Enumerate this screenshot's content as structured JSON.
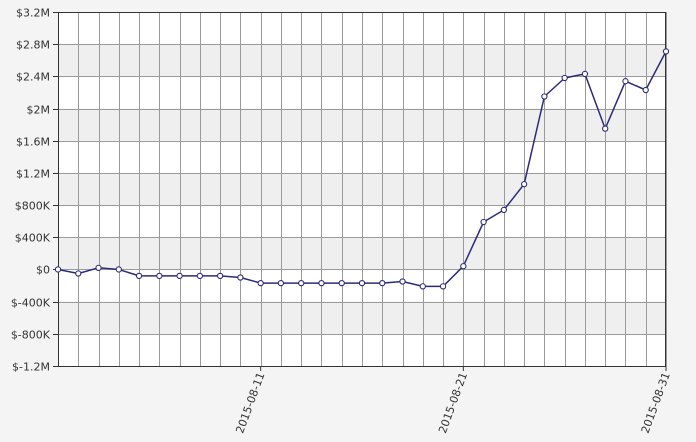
{
  "chart_data": {
    "type": "line",
    "title": "",
    "xlabel": "",
    "ylabel": "",
    "x": [
      "2015-08-01",
      "2015-08-02",
      "2015-08-03",
      "2015-08-04",
      "2015-08-05",
      "2015-08-06",
      "2015-08-07",
      "2015-08-08",
      "2015-08-09",
      "2015-08-10",
      "2015-08-11",
      "2015-08-12",
      "2015-08-13",
      "2015-08-14",
      "2015-08-15",
      "2015-08-16",
      "2015-08-17",
      "2015-08-18",
      "2015-08-19",
      "2015-08-20",
      "2015-08-21",
      "2015-08-22",
      "2015-08-23",
      "2015-08-24",
      "2015-08-25",
      "2015-08-26",
      "2015-08-27",
      "2015-08-28",
      "2015-08-29",
      "2015-08-30",
      "2015-08-31"
    ],
    "series": [
      {
        "values": [
          0,
          -50000,
          20000,
          0,
          -80000,
          -80000,
          -80000,
          -80000,
          -80000,
          -100000,
          -170000,
          -170000,
          -170000,
          -170000,
          -170000,
          -170000,
          -170000,
          -150000,
          -210000,
          -210000,
          40000,
          590000,
          740000,
          1060000,
          2150000,
          2380000,
          2430000,
          1750000,
          2340000,
          2230000,
          2710000
        ]
      }
    ],
    "ylim": [
      -1200000,
      3200000
    ],
    "y_ticks": [
      "$-1.2M",
      "$-800K",
      "$-400K",
      "$0",
      "$400K",
      "$800K",
      "$1.2M",
      "$1.6M",
      "$2M",
      "$2.4M",
      "$2.8M",
      "$3.2M"
    ],
    "x_tick_labels": [
      "2015-08-11",
      "2015-08-21",
      "2015-08-31"
    ],
    "grid": true,
    "colors": {
      "line": "#2b2b7a",
      "marker_fill": "#ffffff",
      "band_light": "#ffffff",
      "band_dark": "#efefef",
      "grid": "#9a9a9a",
      "axis": "#333333"
    }
  }
}
